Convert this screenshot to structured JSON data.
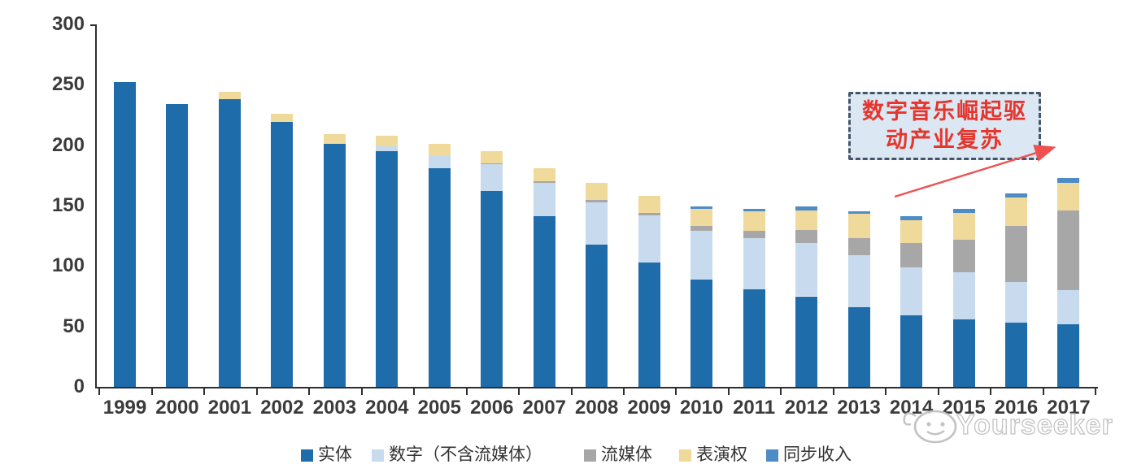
{
  "chart_data": {
    "type": "bar",
    "subtype": "stacked",
    "title": "",
    "xlabel": "",
    "ylabel": "",
    "categories": [
      "1999",
      "2000",
      "2001",
      "2002",
      "2003",
      "2004",
      "2005",
      "2006",
      "2007",
      "2008",
      "2009",
      "2010",
      "2011",
      "2012",
      "2013",
      "2014",
      "2015",
      "2016",
      "2017"
    ],
    "series": [
      {
        "key": "physical",
        "name": "实体",
        "color": "#1f6cab",
        "values": [
          252,
          234,
          238,
          219,
          201,
          195,
          181,
          162,
          141,
          118,
          103,
          89,
          81,
          75,
          66,
          59,
          56,
          53,
          52
        ]
      },
      {
        "key": "digital-excl-streaming",
        "name": "数字（不含流媒体）",
        "color": "#c8dbee",
        "values": [
          0,
          0,
          0,
          0,
          0,
          4,
          11,
          22,
          28,
          35,
          39,
          40,
          42,
          44,
          43,
          40,
          39,
          34,
          28
        ]
      },
      {
        "key": "streaming",
        "name": "流媒体",
        "color": "#a7a7a7",
        "values": [
          0,
          0,
          0,
          0,
          0,
          0,
          0,
          1,
          1,
          2,
          2,
          4,
          6,
          11,
          14,
          20,
          27,
          46,
          66
        ]
      },
      {
        "key": "performance-rights",
        "name": "表演权",
        "color": "#efd99b",
        "values": [
          0,
          0,
          6,
          7,
          8,
          9,
          9,
          10,
          11,
          14,
          14,
          14,
          16,
          16,
          20,
          19,
          22,
          24,
          23
        ]
      },
      {
        "key": "sync-revenue",
        "name": "同步收入",
        "color": "#4f8cc6",
        "values": [
          0,
          0,
          0,
          0,
          0,
          0,
          0,
          0,
          0,
          0,
          0,
          2,
          2,
          3,
          2,
          3,
          3,
          3,
          4
        ]
      }
    ],
    "ylim": [
      0,
      300
    ],
    "yticks": [
      0,
      50,
      100,
      150,
      200,
      250,
      300
    ],
    "grid": false,
    "legend_position": "bottom"
  },
  "annotation": {
    "line1": "数字音乐崛起驱",
    "line2": "动产业复苏",
    "text_color": "#e5352c",
    "border_color": "#44546a",
    "fill_color": "#dbe7f3",
    "arrow_color": "#f05050"
  },
  "watermark": {
    "text": "Yourseeker",
    "color": "#c3c3c3"
  }
}
